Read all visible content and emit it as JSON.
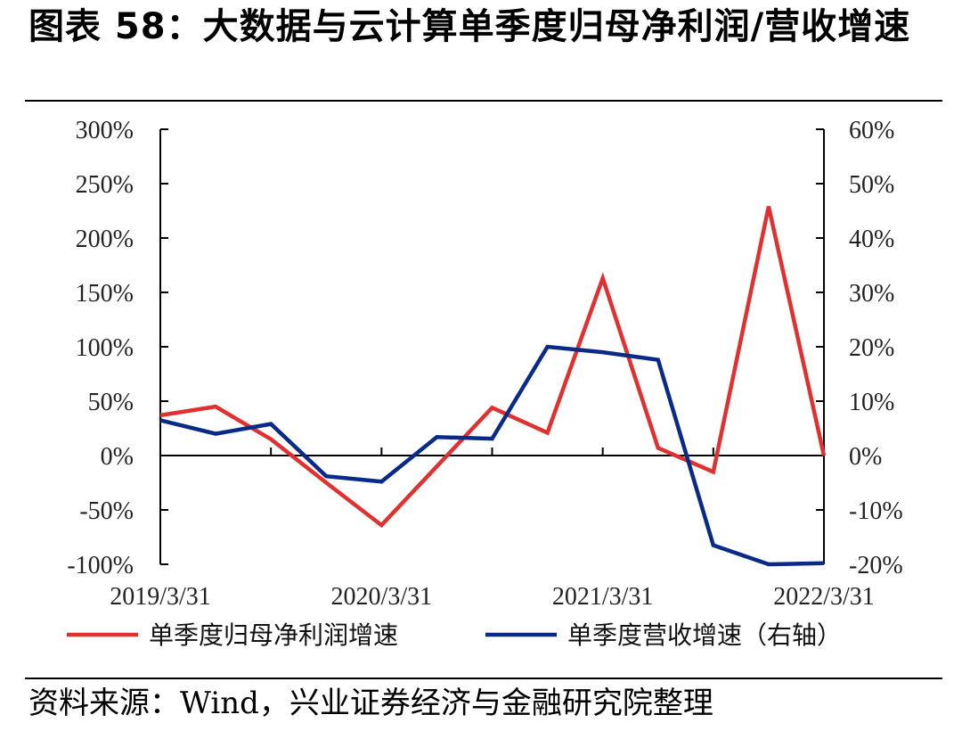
{
  "title": "图表 58：大数据与云计算单季度归母净利润/营收增速",
  "source": "资料来源：Wind，兴业证券经济与金融研究院整理",
  "chart_data": {
    "type": "line",
    "x": [
      "2019/3/31",
      "2019/6/30",
      "2019/9/30",
      "2019/12/31",
      "2020/3/31",
      "2020/6/30",
      "2020/9/30",
      "2020/12/31",
      "2021/3/31",
      "2021/6/30",
      "2021/9/30",
      "2021/12/31",
      "2022/3/31"
    ],
    "x_tick_labels": [
      "2019/3/31",
      "2020/3/31",
      "2021/3/31",
      "2022/3/31"
    ],
    "y_left": {
      "range": [
        -100,
        300
      ],
      "ticks": [
        "300%",
        "250%",
        "200%",
        "150%",
        "100%",
        "50%",
        "0%",
        "-50%",
        "-100%"
      ]
    },
    "y_right": {
      "range": [
        -20,
        60
      ],
      "ticks": [
        "60%",
        "50%",
        "40%",
        "30%",
        "20%",
        "10%",
        "0%",
        "-10%",
        "-20%"
      ]
    },
    "series": [
      {
        "name": "单季度归母净利润增速",
        "axis": "left",
        "color": "#e03030",
        "values": [
          37,
          45,
          15,
          -25,
          -64,
          -10,
          44,
          21,
          163,
          7,
          -15,
          229,
          0
        ]
      },
      {
        "name": "单季度营收增速（右轴）",
        "axis": "right",
        "color": "#0a2a88",
        "values": [
          6.5,
          4,
          5.8,
          -3.8,
          -4.8,
          3.4,
          3.1,
          20,
          19,
          17.6,
          -16.5,
          -20,
          -19.8
        ]
      }
    ],
    "legend": "bottom"
  }
}
